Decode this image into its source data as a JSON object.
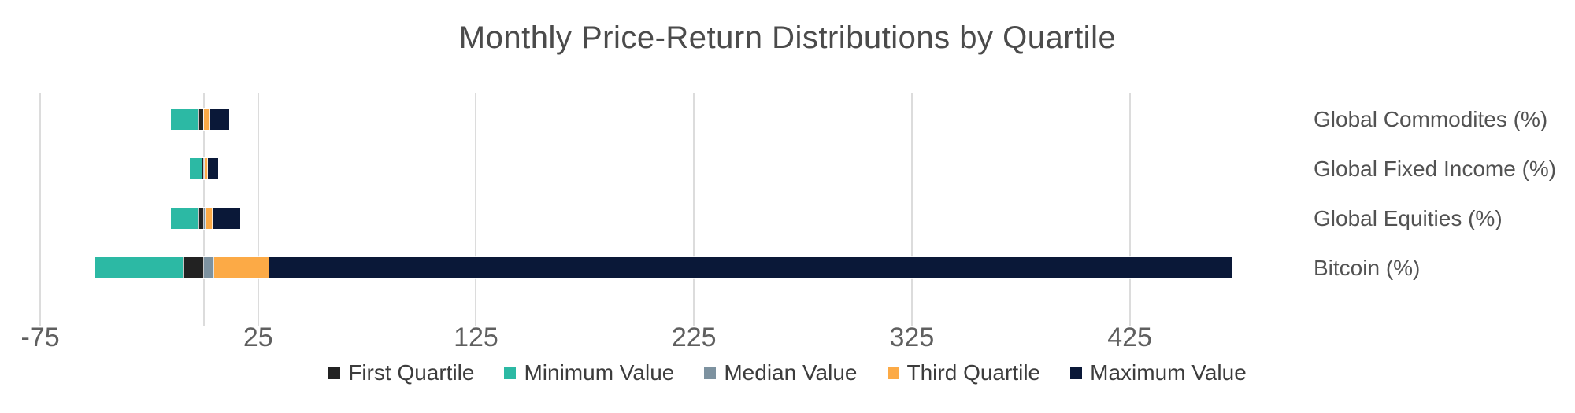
{
  "chart_data": {
    "type": "bar",
    "subtype": "horizontal-stacked",
    "title": "Monthly Price-Return Distributions by Quartile",
    "categories": [
      "Global Commodites (%)",
      "Global Fixed Income (%)",
      "Global Equities (%)",
      "Bitcoin (%)"
    ],
    "series": [
      {
        "name": "First Quartile",
        "color": "#222222",
        "values": [
          -2.4,
          -0.8,
          -2.3,
          -9.2
        ]
      },
      {
        "name": "Minimum Value",
        "color": "#2cb9a4",
        "values": [
          -12.6,
          -5.4,
          -12.7,
          -41.0
        ]
      },
      {
        "name": "Median Value",
        "color": "#7d92a0",
        "values": [
          0.3,
          0.4,
          0.9,
          4.8
        ]
      },
      {
        "name": "Third Quartile",
        "color": "#fcaa46",
        "values": [
          2.6,
          1.4,
          3.2,
          25.5
        ]
      },
      {
        "name": "Maximum Value",
        "color": "#0a1838",
        "values": [
          8.9,
          4.8,
          12.7,
          442.0
        ]
      }
    ],
    "x_ticks": [
      -75,
      25,
      125,
      225,
      325,
      425
    ],
    "x_range": [
      -79,
      492
    ],
    "zero_line": true,
    "grid": "vertical",
    "legend_position": "bottom",
    "colors": {
      "background": "#ffffff",
      "gridline": "#dcdcdc",
      "title_text": "#4b4b4b",
      "tick_text": "#5f5f5f",
      "category_text": "#525252",
      "legend_text": "#3c3c3c"
    }
  }
}
